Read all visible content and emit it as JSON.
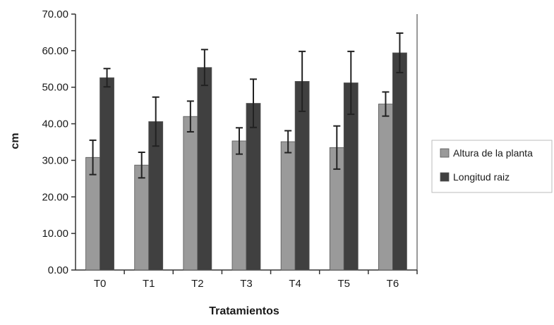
{
  "chart_data": {
    "type": "bar",
    "title": "",
    "xlabel": "Tratamientos",
    "ylabel": "cm",
    "ylim": [
      0,
      70
    ],
    "yticks": [
      "0.00",
      "10.00",
      "20.00",
      "30.00",
      "40.00",
      "50.00",
      "60.00",
      "70.00"
    ],
    "categories": [
      "T0",
      "T1",
      "T2",
      "T3",
      "T4",
      "T5",
      "T6"
    ],
    "legend_position": "right",
    "grid": false,
    "series": [
      {
        "name": "Altura de la planta",
        "color": "#9a9a9a",
        "values": [
          30.8,
          28.7,
          42.0,
          35.3,
          35.1,
          33.5,
          45.4
        ],
        "error": [
          4.7,
          3.5,
          4.2,
          3.6,
          3.0,
          5.9,
          3.3
        ]
      },
      {
        "name": "Longitud raiz",
        "color": "#404040",
        "values": [
          52.6,
          40.6,
          55.4,
          45.6,
          51.6,
          51.2,
          59.4
        ],
        "error": [
          2.5,
          6.7,
          4.9,
          6.6,
          8.2,
          8.6,
          5.4
        ]
      }
    ]
  }
}
